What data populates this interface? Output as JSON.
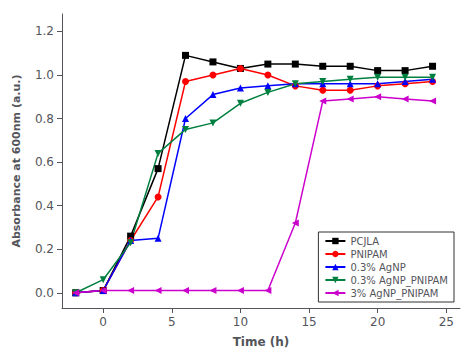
{
  "chart_data": {
    "type": "line",
    "xlabel": "Time (h)",
    "ylabel": "Absorbance at 600nm (a.u.)",
    "x": [
      -2,
      0,
      2,
      4,
      6,
      8,
      10,
      12,
      14,
      16,
      18,
      20,
      22,
      24
    ],
    "series": [
      {
        "name": "PCJLA",
        "color": "#000000",
        "marker": "square",
        "line_style": "solid",
        "values": [
          0.0,
          0.01,
          0.26,
          0.57,
          1.09,
          1.06,
          1.03,
          1.05,
          1.05,
          1.04,
          1.04,
          1.02,
          1.02,
          1.04
        ]
      },
      {
        "name": "PNIPAM",
        "color": "#ff0000",
        "marker": "circle",
        "line_style": "solid",
        "values": [
          0.0,
          0.01,
          0.24,
          0.44,
          0.97,
          1.0,
          1.03,
          1.0,
          0.95,
          0.93,
          0.93,
          0.95,
          0.96,
          0.97
        ]
      },
      {
        "name": "0.3% AgNP",
        "color": "#0000ff",
        "marker": "triangle-up",
        "line_style": "solid",
        "values": [
          0.0,
          0.01,
          0.24,
          0.25,
          0.8,
          0.91,
          0.94,
          0.95,
          0.96,
          0.96,
          0.96,
          0.96,
          0.97,
          0.98
        ]
      },
      {
        "name": "0.3% AgNP_PNIPAM",
        "color": "#008040",
        "marker": "triangle-down",
        "line_style": "solid",
        "values": [
          0.0,
          0.06,
          0.23,
          0.64,
          0.75,
          0.78,
          0.87,
          0.92,
          0.96,
          0.97,
          0.98,
          0.99,
          0.99,
          0.99
        ]
      },
      {
        "name": "3% AgNP_PNIPAM",
        "color": "#cc00cc",
        "marker": "triangle-left",
        "line_style": "solid",
        "values": [
          0.0,
          0.01,
          0.01,
          0.01,
          0.01,
          0.01,
          0.01,
          0.01,
          0.32,
          0.88,
          0.89,
          0.9,
          0.89,
          0.88
        ]
      }
    ],
    "xlim": [
      -3,
      26
    ],
    "xticks": [
      0,
      5,
      10,
      15,
      20,
      25
    ],
    "ylim": [
      -0.07,
      1.28
    ],
    "yticks": [
      {
        "value": 0.0,
        "label": "0.0"
      },
      0.2,
      0.4,
      0.6,
      0.8,
      {
        "value": 1.0,
        "label": "1.0"
      },
      1.2
    ],
    "grid": false,
    "legend": "lower right"
  }
}
